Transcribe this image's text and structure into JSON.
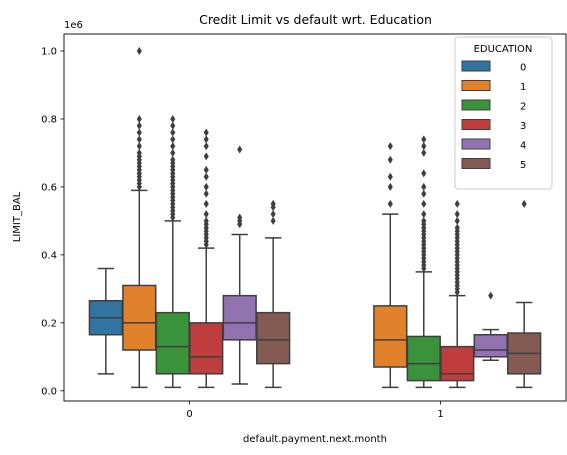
{
  "chart_data": {
    "type": "box",
    "title": "Credit Limit vs default wrt. Education",
    "xlabel": "default.payment.next.month",
    "ylabel": "LIMIT_BAL",
    "y_offset_label": "1e6",
    "ylim": [
      -0.03,
      1.05
    ],
    "yticks": [
      0.0,
      0.2,
      0.4,
      0.6,
      0.8,
      1.0
    ],
    "ytick_labels": [
      "0.0",
      "0.2",
      "0.4",
      "0.6",
      "0.8",
      "1.0"
    ],
    "categories": [
      "0",
      "1"
    ],
    "legend": {
      "title": "EDUCATION",
      "placement": "top-right"
    },
    "series": [
      {
        "name": "0",
        "color": "#3274a1",
        "boxes": [
          {
            "whisker_low": 0.05,
            "q1": 0.165,
            "median": 0.215,
            "q3": 0.265,
            "whisker_high": 0.36,
            "outliers": []
          },
          null
        ]
      },
      {
        "name": "1",
        "color": "#e1812c",
        "boxes": [
          {
            "whisker_low": 0.01,
            "q1": 0.12,
            "median": 0.2,
            "q3": 0.31,
            "whisker_high": 0.59,
            "outliers": [
              0.6,
              0.61,
              0.62,
              0.63,
              0.64,
              0.65,
              0.66,
              0.67,
              0.68,
              0.69,
              0.7,
              0.72,
              0.74,
              0.76,
              0.78,
              0.8,
              1.0
            ]
          },
          {
            "whisker_low": 0.01,
            "q1": 0.07,
            "median": 0.15,
            "q3": 0.25,
            "whisker_high": 0.52,
            "outliers": [
              0.55,
              0.6,
              0.63,
              0.68,
              0.72
            ]
          }
        ]
      },
      {
        "name": "2",
        "color": "#3a923a",
        "boxes": [
          {
            "whisker_low": 0.01,
            "q1": 0.05,
            "median": 0.13,
            "q3": 0.23,
            "whisker_high": 0.5,
            "outliers": [
              0.51,
              0.52,
              0.53,
              0.54,
              0.55,
              0.56,
              0.57,
              0.58,
              0.59,
              0.6,
              0.61,
              0.62,
              0.63,
              0.64,
              0.65,
              0.66,
              0.67,
              0.68,
              0.7,
              0.72,
              0.74,
              0.76,
              0.78,
              0.8
            ]
          },
          {
            "whisker_low": 0.01,
            "q1": 0.03,
            "median": 0.08,
            "q3": 0.16,
            "whisker_high": 0.35,
            "outliers": [
              0.36,
              0.37,
              0.38,
              0.39,
              0.4,
              0.41,
              0.42,
              0.43,
              0.44,
              0.45,
              0.46,
              0.47,
              0.48,
              0.49,
              0.5,
              0.52,
              0.55,
              0.58,
              0.6,
              0.64,
              0.7,
              0.72,
              0.74
            ]
          }
        ]
      },
      {
        "name": "3",
        "color": "#c03d3e",
        "boxes": [
          {
            "whisker_low": 0.01,
            "q1": 0.05,
            "median": 0.1,
            "q3": 0.2,
            "whisker_high": 0.42,
            "outliers": [
              0.43,
              0.44,
              0.45,
              0.46,
              0.47,
              0.48,
              0.49,
              0.5,
              0.52,
              0.55,
              0.58,
              0.6,
              0.63,
              0.65,
              0.69,
              0.72,
              0.74,
              0.76
            ]
          },
          {
            "whisker_low": 0.01,
            "q1": 0.03,
            "median": 0.05,
            "q3": 0.13,
            "whisker_high": 0.28,
            "outliers": [
              0.29,
              0.3,
              0.31,
              0.32,
              0.33,
              0.34,
              0.35,
              0.36,
              0.37,
              0.38,
              0.39,
              0.4,
              0.41,
              0.42,
              0.43,
              0.44,
              0.45,
              0.46,
              0.47,
              0.48,
              0.5,
              0.52,
              0.55
            ]
          }
        ]
      },
      {
        "name": "4",
        "color": "#9372b2",
        "boxes": [
          {
            "whisker_low": 0.02,
            "q1": 0.15,
            "median": 0.2,
            "q3": 0.28,
            "whisker_high": 0.46,
            "outliers": [
              0.49,
              0.5,
              0.51,
              0.71
            ]
          },
          {
            "whisker_low": 0.09,
            "q1": 0.1,
            "median": 0.12,
            "q3": 0.165,
            "whisker_high": 0.18,
            "outliers": [
              0.28
            ]
          }
        ]
      },
      {
        "name": "5",
        "color": "#845b53",
        "boxes": [
          {
            "whisker_low": 0.01,
            "q1": 0.08,
            "median": 0.15,
            "q3": 0.23,
            "whisker_high": 0.45,
            "outliers": [
              0.5,
              0.52,
              0.54,
              0.55
            ]
          },
          {
            "whisker_low": 0.01,
            "q1": 0.05,
            "median": 0.11,
            "q3": 0.17,
            "whisker_high": 0.26,
            "outliers": [
              0.55
            ]
          }
        ]
      }
    ]
  }
}
